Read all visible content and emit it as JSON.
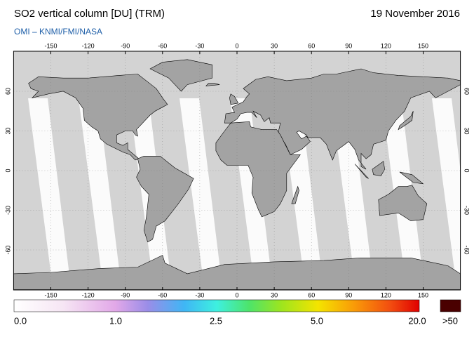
{
  "header": {
    "title": "SO2 vertical column [DU] (TRM)",
    "date": "19 November 2016",
    "subtitle": "OMI  –  KNMI/FMI/NASA"
  },
  "map": {
    "lon_labels": [
      "-150",
      "-120",
      "-90",
      "-60",
      "-30",
      "0",
      "30",
      "60",
      "90",
      "120",
      "150"
    ],
    "lat_labels": [
      "60",
      "30",
      "0",
      "-30",
      "-60"
    ]
  },
  "colorbar": {
    "labels": [
      "0.0",
      "1.0",
      "2.5",
      "5.0",
      "20.0"
    ],
    "overflow_label": ">50"
  }
}
